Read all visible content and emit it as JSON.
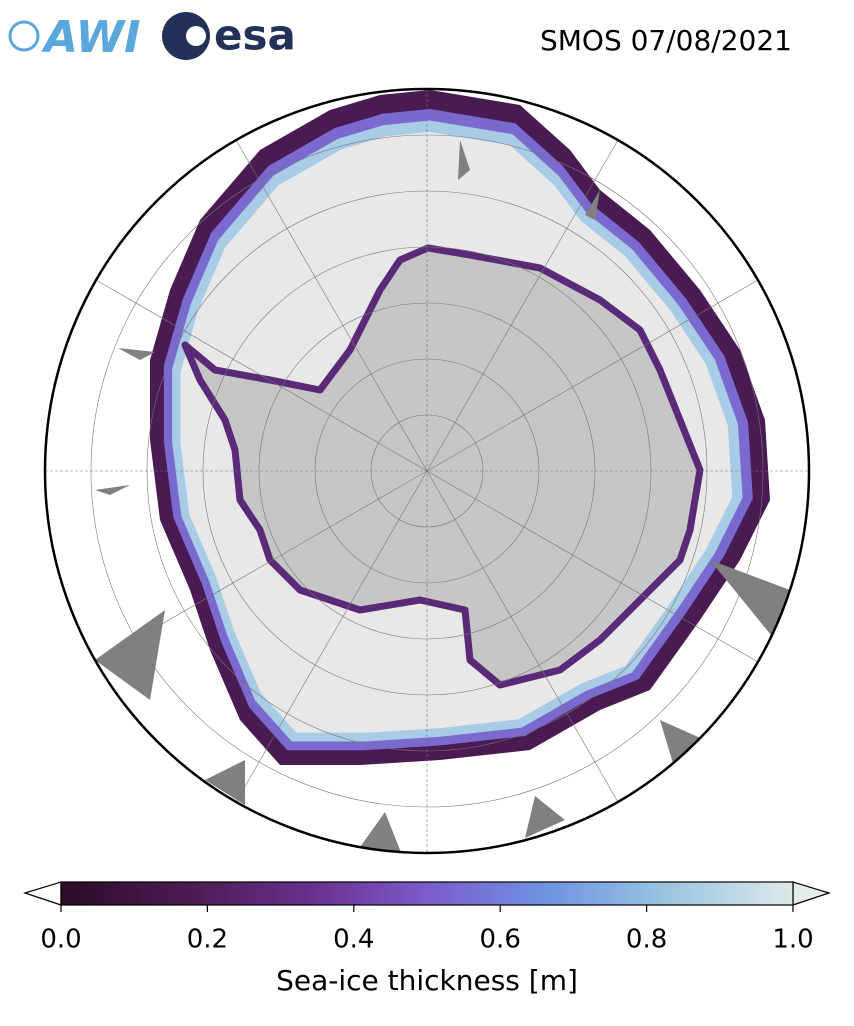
{
  "header": {
    "logo_awi": "AWI",
    "logo_esa": "esa",
    "title": "SMOS 07/08/2021"
  },
  "colorbar": {
    "label": "Sea-ice thickness [m]",
    "lim": [
      0,
      1
    ],
    "ticks": [
      {
        "value": 0,
        "label": "0.0"
      },
      0.2,
      0.4,
      0.6,
      0.8,
      {
        "value": 1,
        "label": "1.0"
      }
    ],
    "colors": [
      "#2a0d26",
      "#4c1a50",
      "#6a2e8a",
      "#7a5ccc",
      "#6f94e2",
      "#9cc6e0",
      "#dde9ea"
    ]
  }
}
